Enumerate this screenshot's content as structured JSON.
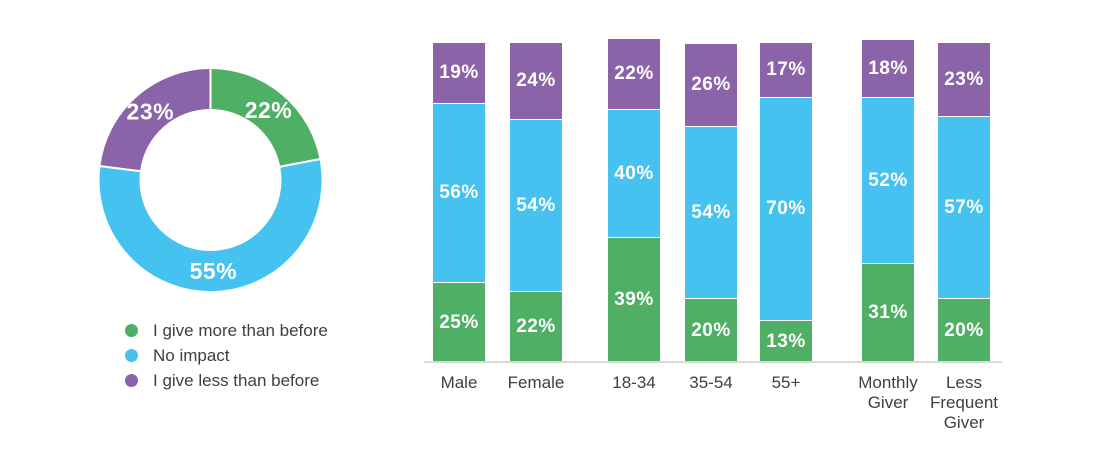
{
  "palette": {
    "green": "#4FB065",
    "blue": "#45C2EF",
    "purple": "#8B63A9",
    "axis_line": "#D9D9D9",
    "text_dark": "#3E3E45",
    "text_on_fill": "#FFFFFF",
    "background": "#FFFFFF"
  },
  "legend": {
    "items": [
      {
        "label": "I give more than before",
        "color": "green"
      },
      {
        "label": "No impact",
        "color": "blue"
      },
      {
        "label": "I give less than before",
        "color": "purple"
      }
    ]
  },
  "chart_data": [
    {
      "type": "pie",
      "subtype": "donut",
      "title": "",
      "legend_position": "bottom-left",
      "start_angle_deg": 0,
      "direction": "clockwise",
      "slices": [
        {
          "name": "I give more than before",
          "value": 22,
          "label": "22%",
          "color": "green"
        },
        {
          "name": "No impact",
          "value": 55,
          "label": "55%",
          "color": "blue"
        },
        {
          "name": "I give less than before",
          "value": 23,
          "label": "23%",
          "color": "purple"
        }
      ]
    },
    {
      "type": "bar",
      "subtype": "stacked-percent",
      "title": "",
      "value_suffix": "%",
      "ylim": [
        0,
        100
      ],
      "grid": false,
      "categories": [
        {
          "label": "Male",
          "lines": [
            "Male"
          ]
        },
        {
          "label": "Female",
          "lines": [
            "Female"
          ]
        },
        {
          "label": "18-34",
          "lines": [
            "18-34"
          ]
        },
        {
          "label": "35-54",
          "lines": [
            "35-54"
          ]
        },
        {
          "label": "55+",
          "lines": [
            "55+"
          ]
        },
        {
          "label": "Monthly Giver",
          "lines": [
            "Monthly",
            "Giver"
          ]
        },
        {
          "label": "Less Frequent Giver",
          "lines": [
            "Less",
            "Frequent",
            "Giver"
          ]
        }
      ],
      "series": [
        {
          "name": "I give more than before",
          "color": "green",
          "values": [
            25,
            22,
            39,
            20,
            13,
            31,
            20
          ]
        },
        {
          "name": "No impact",
          "color": "blue",
          "values": [
            56,
            54,
            40,
            54,
            70,
            52,
            57
          ]
        },
        {
          "name": "I give less than before",
          "color": "purple",
          "values": [
            19,
            24,
            22,
            26,
            17,
            18,
            23
          ]
        }
      ],
      "stack_order_bottom_to_top": [
        "I give more than before",
        "No impact",
        "I give less than before"
      ]
    }
  ]
}
